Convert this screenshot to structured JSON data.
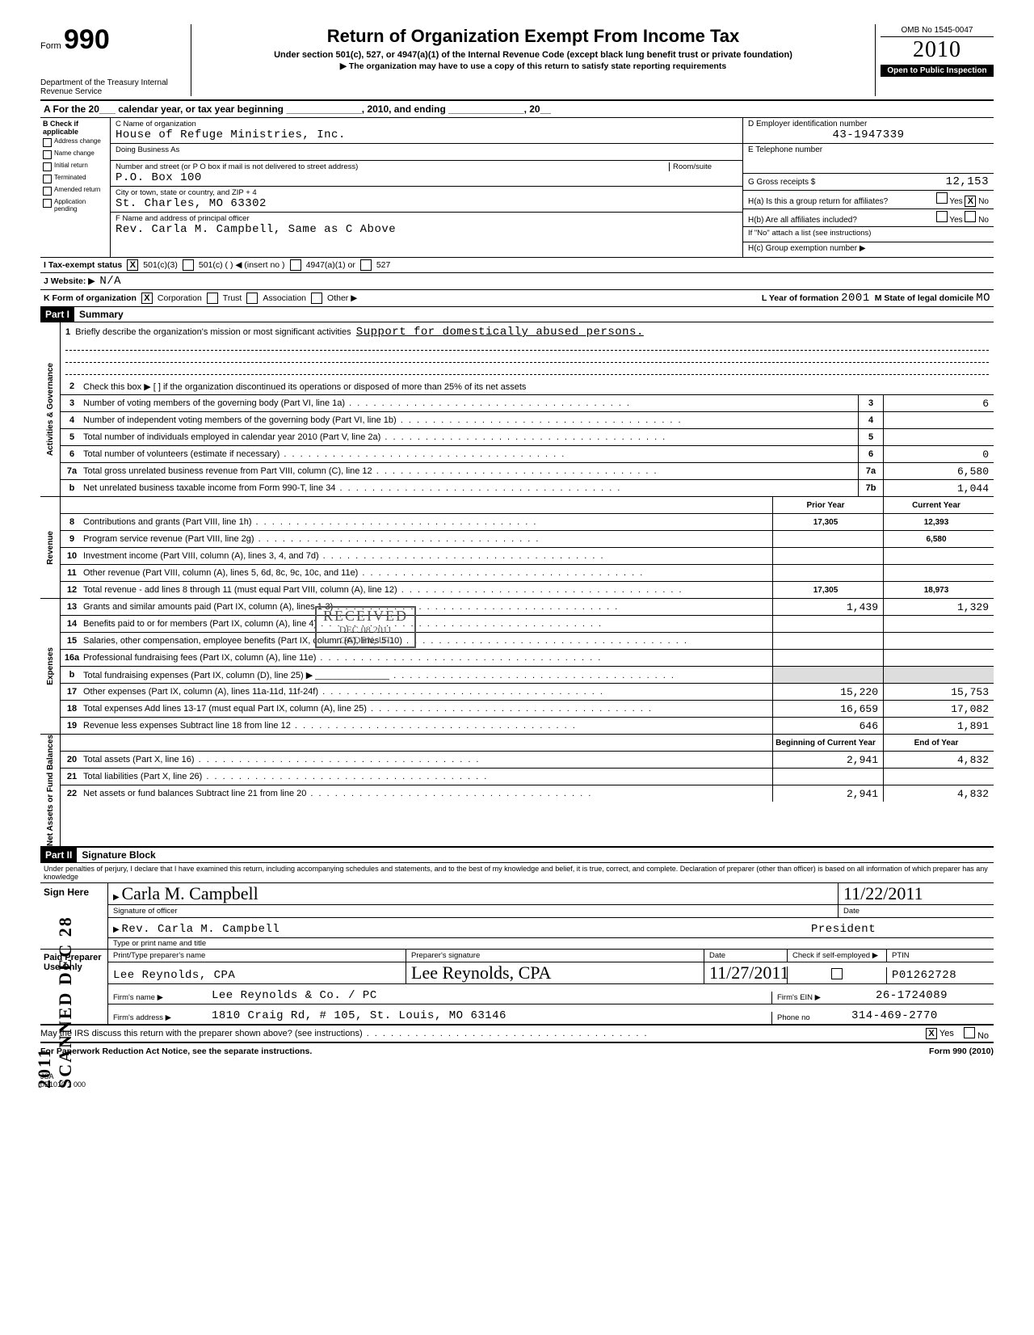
{
  "form": {
    "form_label": "Form",
    "number": "990",
    "dept": "Department of the Treasury\nInternal Revenue Service",
    "title": "Return of Organization Exempt From Income Tax",
    "subtitle": "Under section 501(c), 527, or 4947(a)(1) of the Internal Revenue Code (except black lung benefit trust or private foundation)",
    "subtitle2": "▶ The organization may have to use a copy of this return to satisfy state reporting requirements",
    "omb": "OMB No 1545-0047",
    "year": "2010",
    "open": "Open to Public Inspection"
  },
  "row_a": "A  For the 20___ calendar year, or tax year beginning ______________, 2010, and ending ______________, 20__",
  "sectionB": {
    "header": "B Check if applicable",
    "items": [
      "Address change",
      "Name change",
      "Initial return",
      "Terminated",
      "Amended return",
      "Application pending"
    ]
  },
  "sectionC": {
    "name_label": "C Name of organization",
    "name": "House of Refuge Ministries, Inc.",
    "dba_label": "Doing Business As",
    "street_label": "Number and street (or P O box if mail is not delivered to street address)",
    "room_label": "Room/suite",
    "street": "P.O. Box 100",
    "city_label": "City or town, state or country, and ZIP + 4",
    "city": "St. Charles, MO  63302",
    "officer_label": "F Name and address of principal officer",
    "officer": "Rev. Carla M. Campbell, Same as C Above"
  },
  "sectionD": {
    "ein_label": "D  Employer identification number",
    "ein": "43-1947339",
    "phone_label": "E  Telephone number",
    "gross_label": "G  Gross receipts $",
    "gross": "12,153",
    "h_a": "H(a) Is this a group return for affiliates?",
    "h_a_yes": "Yes",
    "h_a_no": "No",
    "h_a_val": "X",
    "h_b": "H(b) Are all affiliates included?",
    "h_b_note": "If \"No\" attach a list (see instructions)",
    "h_c": "H(c) Group exemption number ▶"
  },
  "rowI": {
    "label": "I   Tax-exempt status",
    "c3": "501(c)(3)",
    "c": "501(c) (      ) ◀ (insert no )",
    "a1": "4947(a)(1) or",
    "s527": "527"
  },
  "rowJ": {
    "label": "J   Website: ▶",
    "val": "N/A"
  },
  "rowK": {
    "label": "K  Form of organization",
    "corp": "Corporation",
    "trust": "Trust",
    "assoc": "Association",
    "other": "Other ▶",
    "L": "L Year of formation",
    "L_val": "2001",
    "M": "M State of legal domicile",
    "M_val": "MO"
  },
  "part1": {
    "header": "Part I",
    "title": "Summary",
    "line1_label": "Briefly describe the organization's mission or most significant activities",
    "line1_val": "Support for domestically abused persons.",
    "line2": "Check this box ▶ [ ] if the organization discontinued its operations or disposed of more than 25% of its net assets",
    "prior": "Prior Year",
    "current": "Current Year",
    "boy": "Beginning of Current Year",
    "eoy": "End of Year"
  },
  "governance_lines": [
    {
      "n": "3",
      "t": "Number of voting members of the governing body (Part VI, line 1a)",
      "box": "3",
      "v": "6"
    },
    {
      "n": "4",
      "t": "Number of independent voting members of the governing body (Part VI, line 1b)",
      "box": "4",
      "v": ""
    },
    {
      "n": "5",
      "t": "Total number of individuals employed in calendar year 2010 (Part V, line 2a)",
      "box": "5",
      "v": ""
    },
    {
      "n": "6",
      "t": "Total number of volunteers (estimate if necessary)",
      "box": "6",
      "v": "0"
    },
    {
      "n": "7a",
      "t": "Total gross unrelated business revenue from Part VIII, column (C), line 12",
      "box": "7a",
      "v": "6,580"
    },
    {
      "n": "b",
      "t": "Net unrelated business taxable income from Form 990-T, line 34",
      "box": "7b",
      "v": "1,044"
    }
  ],
  "revenue_lines": [
    {
      "n": "8",
      "t": "Contributions and grants (Part VIII, line 1h)",
      "p": "17,305",
      "c": "12,393"
    },
    {
      "n": "9",
      "t": "Program service revenue (Part VIII, line 2g)",
      "p": "",
      "c": "6,580"
    },
    {
      "n": "10",
      "t": "Investment income (Part VIII, column (A), lines 3, 4, and 7d)",
      "p": "",
      "c": ""
    },
    {
      "n": "11",
      "t": "Other revenue (Part VIII, column (A), lines 5, 6d, 8c, 9c, 10c, and 11e)",
      "p": "",
      "c": ""
    },
    {
      "n": "12",
      "t": "Total revenue - add lines 8 through 11 (must equal Part VIII, column (A), line 12)",
      "p": "17,305",
      "c": "18,973"
    }
  ],
  "expense_lines": [
    {
      "n": "13",
      "t": "Grants and similar amounts paid (Part IX, column (A), lines 1-3)",
      "p": "1,439",
      "c": "1,329"
    },
    {
      "n": "14",
      "t": "Benefits paid to or for members (Part IX, column (A), line 4)",
      "p": "",
      "c": ""
    },
    {
      "n": "15",
      "t": "Salaries, other compensation, employee benefits (Part IX, column (A), lines 5-10)",
      "p": "",
      "c": ""
    },
    {
      "n": "16a",
      "t": "Professional fundraising fees (Part IX, column (A), line 11e)",
      "p": "",
      "c": ""
    },
    {
      "n": "b",
      "t": "Total fundraising expenses (Part IX, column (D), line 25) ▶ _______________",
      "p": "shade",
      "c": "shade"
    },
    {
      "n": "17",
      "t": "Other expenses (Part IX, column (A), lines 11a-11d, 11f-24f)",
      "p": "15,220",
      "c": "15,753"
    },
    {
      "n": "18",
      "t": "Total expenses  Add lines 13-17 (must equal Part IX, column (A), line 25)",
      "p": "16,659",
      "c": "17,082"
    },
    {
      "n": "19",
      "t": "Revenue less expenses  Subtract line 18 from line 12",
      "p": "646",
      "c": "1,891"
    }
  ],
  "balance_lines": [
    {
      "n": "20",
      "t": "Total assets (Part X, line 16)",
      "p": "2,941",
      "c": "4,832"
    },
    {
      "n": "21",
      "t": "Total liabilities (Part X, line 26)",
      "p": "",
      "c": ""
    },
    {
      "n": "22",
      "t": "Net assets or fund balances  Subtract line 21 from line 20",
      "p": "2,941",
      "c": "4,832"
    }
  ],
  "part2": {
    "header": "Part II",
    "title": "Signature Block",
    "perjury": "Under penalties of perjury, I declare that I have examined this return, including accompanying schedules and statements, and to the best of my knowledge and belief, it is true, correct, and complete. Declaration of preparer (other than officer) is based on all information of which preparer has any knowledge",
    "sign_here": "Sign Here",
    "sig_label": "Signature of officer",
    "date_label": "Date",
    "date_val": "11/22/2011",
    "name": "Rev. Carla M. Campbell",
    "title2": "President",
    "type_label": "Type or print name and title"
  },
  "preparer": {
    "label": "Paid Preparer Use Only",
    "name_label": "Print/Type preparer's name",
    "name": "Lee Reynolds, CPA",
    "sig_label": "Preparer's signature",
    "date_label": "Date",
    "date": "11/27/2011",
    "self_label": "Check if self-employed ▶",
    "ptin_label": "PTIN",
    "ptin": "P01262728",
    "firm_label": "Firm's name ▶",
    "firm": "Lee Reynolds & Co. / PC",
    "ein_label": "Firm's EIN ▶",
    "ein": "26-1724089",
    "addr_label": "Firm's address ▶",
    "addr": "1810 Craig Rd, # 105, St. Louis, MO  63146",
    "phone_label": "Phone no",
    "phone": "314-469-2770",
    "irs_q": "May the IRS discuss this return with the preparer shown above? (see instructions)",
    "irs_yes": "Yes",
    "irs_no": "No"
  },
  "footer": {
    "left": "For Paperwork Reduction Act Notice, see the separate instructions.",
    "right": "Form 990 (2010)",
    "jsa": "JSA\n0E1010 1 000"
  },
  "stamp": {
    "r1": "RECEIVED",
    "r2": "DEC 08 2011",
    "r3": "OGDEN, UT"
  },
  "scanned": "SCANNED DEC 28 2011"
}
